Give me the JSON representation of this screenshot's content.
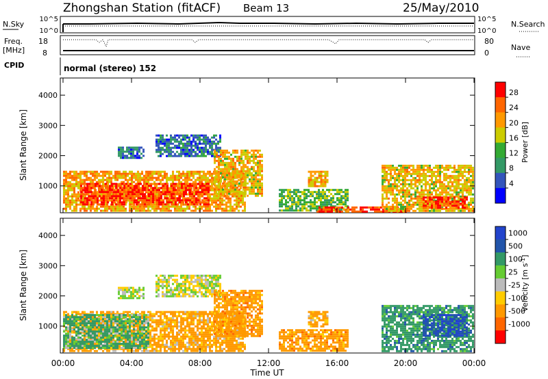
{
  "header": {
    "station": "Zhongshan Station (fitACF)",
    "beam": "Beam 13",
    "date": "25/May/2010"
  },
  "aux": {
    "nsky_label": "N.Sky",
    "nsky_ticks": [
      "10^5",
      "10^0"
    ],
    "nsearch_label": "N.Search",
    "nsearch_ticks": [
      "10^5",
      "10^0"
    ],
    "freq_label": "Freq.",
    "freq_unit": "[MHz]",
    "freq_ticks": [
      "18",
      "8"
    ],
    "nave_label": "Nave",
    "nave_ticks": [
      "80",
      "0"
    ],
    "cpid_label": "CPID",
    "cpid_text": "normal (stereo) 152"
  },
  "panels": {
    "ylabel": "Slant Range [km]",
    "yticks": [
      "4000",
      "3000",
      "2000",
      "1000"
    ],
    "xticks": [
      "00:00",
      "04:00",
      "08:00",
      "12:00",
      "16:00",
      "20:00",
      "00:00"
    ],
    "xlabel": "Time UT"
  },
  "power_scale": {
    "label": "Power [dB]",
    "ticks": [
      "28",
      "24",
      "20",
      "16",
      "12",
      "8",
      "4"
    ],
    "colors": [
      "#ff0000",
      "#ff6600",
      "#ff9900",
      "#cccc00",
      "#33aa33",
      "#339966",
      "#3355bb",
      "#0000ff"
    ]
  },
  "velocity_scale": {
    "label": "Velocity [m s",
    "label_sup": "-1",
    "label_end": "]",
    "ticks": [
      "1000",
      "500",
      "100",
      "25",
      "-25",
      "-100",
      "-500",
      "-1000"
    ],
    "colors": [
      "#2244cc",
      "#2255aa",
      "#339966",
      "#66cc33",
      "#bbbbbb",
      "#ffcc00",
      "#ff9900",
      "#ff6600",
      "#ff0000"
    ]
  },
  "chart_data": [
    {
      "type": "heatmap",
      "title": "Power",
      "x": "Time UT 00:00-24:00",
      "xlim": [
        0,
        24
      ],
      "ylim": [
        180,
        4500
      ],
      "yunit": "km",
      "zlabel": "Power [dB]",
      "zlim": [
        0,
        32
      ],
      "regions": [
        {
          "t0": 0.0,
          "t1": 10.6,
          "r0": 200,
          "r1": 1500,
          "value": 22
        },
        {
          "t0": 1.0,
          "t1": 8.5,
          "r0": 400,
          "r1": 1100,
          "value": 28
        },
        {
          "t0": 3.2,
          "t1": 4.7,
          "r0": 1900,
          "r1": 2300,
          "value": 7
        },
        {
          "t0": 5.4,
          "t1": 9.2,
          "r0": 2000,
          "r1": 2700,
          "value": 8
        },
        {
          "t0": 8.8,
          "t1": 11.6,
          "r0": 700,
          "r1": 2200,
          "value": 20
        },
        {
          "t0": 12.6,
          "t1": 16.6,
          "r0": 200,
          "r1": 900,
          "value": 14
        },
        {
          "t0": 14.3,
          "t1": 15.5,
          "r0": 1000,
          "r1": 1500,
          "value": 22
        },
        {
          "t0": 14.8,
          "t1": 20.0,
          "r0": 180,
          "r1": 320,
          "value": 28
        },
        {
          "t0": 18.6,
          "t1": 24.0,
          "r0": 200,
          "r1": 1700,
          "value": 20
        },
        {
          "t0": 21.0,
          "t1": 23.6,
          "r0": 250,
          "r1": 650,
          "value": 28
        }
      ]
    },
    {
      "type": "heatmap",
      "title": "Velocity",
      "x": "Time UT 00:00-24:00",
      "xlim": [
        0,
        24
      ],
      "ylim": [
        180,
        4500
      ],
      "yunit": "km",
      "zlabel": "Velocity [m s-1]",
      "zlim": [
        -1000,
        1000
      ],
      "regions": [
        {
          "t0": 0.0,
          "t1": 10.6,
          "r0": 200,
          "r1": 1500,
          "value": -200
        },
        {
          "t0": 0.0,
          "t1": 5.0,
          "r0": 300,
          "r1": 1400,
          "value": 150
        },
        {
          "t0": 3.2,
          "t1": 4.7,
          "r0": 1900,
          "r1": 2300,
          "value": 0
        },
        {
          "t0": 5.4,
          "t1": 9.2,
          "r0": 2000,
          "r1": 2700,
          "value": 0
        },
        {
          "t0": 8.8,
          "t1": 11.6,
          "r0": 700,
          "r1": 2200,
          "value": -300
        },
        {
          "t0": 12.6,
          "t1": 16.6,
          "r0": 200,
          "r1": 900,
          "value": -300
        },
        {
          "t0": 14.3,
          "t1": 15.5,
          "r0": 1000,
          "r1": 1500,
          "value": -200
        },
        {
          "t0": 18.6,
          "t1": 24.0,
          "r0": 200,
          "r1": 1700,
          "value": 300
        },
        {
          "t0": 21.0,
          "t1": 23.6,
          "r0": 700,
          "r1": 1400,
          "value": 900
        }
      ]
    }
  ]
}
